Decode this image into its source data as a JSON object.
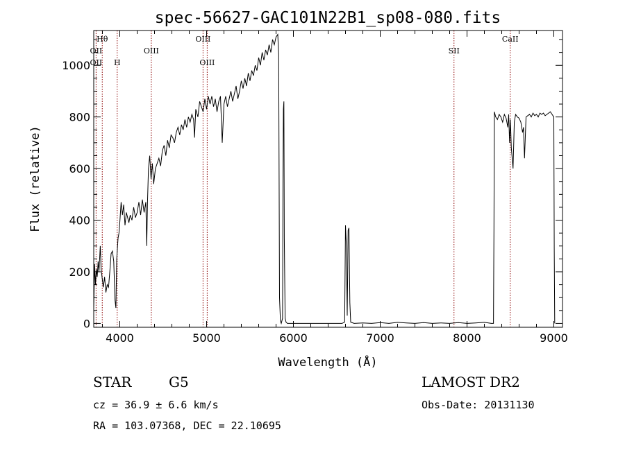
{
  "chart_data": {
    "type": "line",
    "title": "spec-56627-GAC101N22B1_sp08-080.fits",
    "xlabel": "Wavelength (Å)",
    "ylabel": "Flux (relative)",
    "xlim": [
      3700,
      9100
    ],
    "ylim": [
      -15,
      1135
    ],
    "x_ticks": [
      4000,
      5000,
      6000,
      7000,
      8000,
      9000
    ],
    "y_ticks": [
      0,
      200,
      400,
      600,
      800,
      1000
    ],
    "grid": false,
    "line_color": "#000000",
    "marker_color": "#8b0000",
    "spectrum": [
      [
        3700,
        60
      ],
      [
        3710,
        230
      ],
      [
        3720,
        150
      ],
      [
        3730,
        210
      ],
      [
        3740,
        180
      ],
      [
        3750,
        240
      ],
      [
        3760,
        200
      ],
      [
        3775,
        300
      ],
      [
        3785,
        210
      ],
      [
        3795,
        180
      ],
      [
        3810,
        140
      ],
      [
        3825,
        180
      ],
      [
        3840,
        120
      ],
      [
        3855,
        150
      ],
      [
        3870,
        140
      ],
      [
        3885,
        200
      ],
      [
        3900,
        270
      ],
      [
        3915,
        280
      ],
      [
        3930,
        240
      ],
      [
        3945,
        90
      ],
      [
        3955,
        60
      ],
      [
        3965,
        250
      ],
      [
        3980,
        330
      ],
      [
        3990,
        350
      ],
      [
        4000,
        390
      ],
      [
        4015,
        470
      ],
      [
        4030,
        420
      ],
      [
        4045,
        460
      ],
      [
        4060,
        380
      ],
      [
        4075,
        430
      ],
      [
        4090,
        410
      ],
      [
        4105,
        390
      ],
      [
        4120,
        420
      ],
      [
        4140,
        400
      ],
      [
        4160,
        450
      ],
      [
        4180,
        410
      ],
      [
        4200,
        430
      ],
      [
        4220,
        470
      ],
      [
        4240,
        420
      ],
      [
        4260,
        480
      ],
      [
        4280,
        430
      ],
      [
        4300,
        470
      ],
      [
        4310,
        300
      ],
      [
        4320,
        480
      ],
      [
        4330,
        600
      ],
      [
        4345,
        650
      ],
      [
        4360,
        560
      ],
      [
        4375,
        620
      ],
      [
        4390,
        540
      ],
      [
        4410,
        600
      ],
      [
        4430,
        620
      ],
      [
        4450,
        640
      ],
      [
        4470,
        610
      ],
      [
        4490,
        670
      ],
      [
        4510,
        690
      ],
      [
        4530,
        650
      ],
      [
        4550,
        710
      ],
      [
        4570,
        680
      ],
      [
        4590,
        730
      ],
      [
        4610,
        720
      ],
      [
        4630,
        700
      ],
      [
        4650,
        740
      ],
      [
        4670,
        760
      ],
      [
        4690,
        730
      ],
      [
        4710,
        770
      ],
      [
        4730,
        750
      ],
      [
        4750,
        790
      ],
      [
        4770,
        760
      ],
      [
        4790,
        800
      ],
      [
        4810,
        780
      ],
      [
        4830,
        810
      ],
      [
        4850,
        790
      ],
      [
        4861,
        720
      ],
      [
        4875,
        830
      ],
      [
        4900,
        800
      ],
      [
        4920,
        860
      ],
      [
        4940,
        840
      ],
      [
        4960,
        820
      ],
      [
        4980,
        870
      ],
      [
        5000,
        830
      ],
      [
        5020,
        880
      ],
      [
        5040,
        850
      ],
      [
        5060,
        880
      ],
      [
        5080,
        840
      ],
      [
        5100,
        870
      ],
      [
        5120,
        820
      ],
      [
        5140,
        860
      ],
      [
        5160,
        880
      ],
      [
        5180,
        700
      ],
      [
        5200,
        850
      ],
      [
        5220,
        880
      ],
      [
        5240,
        840
      ],
      [
        5260,
        870
      ],
      [
        5280,
        900
      ],
      [
        5300,
        860
      ],
      [
        5320,
        890
      ],
      [
        5340,
        920
      ],
      [
        5360,
        870
      ],
      [
        5380,
        900
      ],
      [
        5400,
        940
      ],
      [
        5420,
        910
      ],
      [
        5440,
        950
      ],
      [
        5460,
        920
      ],
      [
        5480,
        970
      ],
      [
        5500,
        940
      ],
      [
        5520,
        980
      ],
      [
        5540,
        960
      ],
      [
        5560,
        1000
      ],
      [
        5580,
        980
      ],
      [
        5600,
        1030
      ],
      [
        5620,
        1000
      ],
      [
        5640,
        1050
      ],
      [
        5660,
        1020
      ],
      [
        5680,
        1060
      ],
      [
        5700,
        1040
      ],
      [
        5720,
        1080
      ],
      [
        5740,
        1050
      ],
      [
        5760,
        1100
      ],
      [
        5780,
        1080
      ],
      [
        5800,
        1110
      ],
      [
        5820,
        1120
      ],
      [
        5830,
        1040
      ],
      [
        5840,
        100
      ],
      [
        5850,
        10
      ],
      [
        5860,
        0
      ],
      [
        5875,
        20
      ],
      [
        5880,
        540
      ],
      [
        5885,
        830
      ],
      [
        5890,
        860
      ],
      [
        5895,
        330
      ],
      [
        5905,
        20
      ],
      [
        5915,
        5
      ],
      [
        5930,
        0
      ],
      [
        6000,
        0
      ],
      [
        6100,
        0
      ],
      [
        6200,
        0
      ],
      [
        6300,
        0
      ],
      [
        6400,
        0
      ],
      [
        6500,
        0
      ],
      [
        6560,
        0
      ],
      [
        6590,
        5
      ],
      [
        6600,
        380
      ],
      [
        6610,
        300
      ],
      [
        6620,
        30
      ],
      [
        6630,
        360
      ],
      [
        6640,
        370
      ],
      [
        6650,
        80
      ],
      [
        6660,
        5
      ],
      [
        6700,
        0
      ],
      [
        6800,
        2
      ],
      [
        6900,
        0
      ],
      [
        7000,
        3
      ],
      [
        7100,
        0
      ],
      [
        7200,
        4
      ],
      [
        7300,
        2
      ],
      [
        7400,
        0
      ],
      [
        7500,
        3
      ],
      [
        7600,
        0
      ],
      [
        7700,
        2
      ],
      [
        7800,
        0
      ],
      [
        7900,
        3
      ],
      [
        8000,
        0
      ],
      [
        8100,
        2
      ],
      [
        8200,
        4
      ],
      [
        8280,
        0
      ],
      [
        8305,
        0
      ],
      [
        8310,
        370
      ],
      [
        8315,
        820
      ],
      [
        8330,
        800
      ],
      [
        8350,
        790
      ],
      [
        8370,
        810
      ],
      [
        8390,
        800
      ],
      [
        8410,
        780
      ],
      [
        8430,
        810
      ],
      [
        8450,
        795
      ],
      [
        8470,
        760
      ],
      [
        8480,
        810
      ],
      [
        8490,
        700
      ],
      [
        8500,
        790
      ],
      [
        8510,
        680
      ],
      [
        8530,
        600
      ],
      [
        8545,
        780
      ],
      [
        8560,
        810
      ],
      [
        8580,
        800
      ],
      [
        8600,
        795
      ],
      [
        8620,
        780
      ],
      [
        8640,
        740
      ],
      [
        8650,
        760
      ],
      [
        8662,
        640
      ],
      [
        8680,
        800
      ],
      [
        8700,
        805
      ],
      [
        8720,
        810
      ],
      [
        8740,
        800
      ],
      [
        8760,
        815
      ],
      [
        8780,
        805
      ],
      [
        8800,
        810
      ],
      [
        8820,
        800
      ],
      [
        8840,
        815
      ],
      [
        8860,
        810
      ],
      [
        8880,
        815
      ],
      [
        8900,
        805
      ],
      [
        8920,
        810
      ],
      [
        8940,
        815
      ],
      [
        8960,
        820
      ],
      [
        8980,
        810
      ],
      [
        9000,
        800
      ],
      [
        9005,
        290
      ],
      [
        9010,
        0
      ]
    ],
    "lines": [
      {
        "label": "Hθ",
        "x": 3798,
        "row": 0
      },
      {
        "label": "OII",
        "x": 3727,
        "row": 1
      },
      {
        "label": "OII",
        "x": 3727,
        "row": 2
      },
      {
        "label": "H",
        "x": 3970,
        "row": 2
      },
      {
        "label": "OIII",
        "x": 4363,
        "row": 1
      },
      {
        "label": "OIII",
        "x": 4959,
        "row": 0
      },
      {
        "label": "OIII",
        "x": 5007,
        "row": 2
      },
      {
        "label": "SII",
        "x": 7850,
        "row": 1
      },
      {
        "label": "CaII",
        "x": 8498,
        "row": 0
      }
    ]
  },
  "info": {
    "object_class": "STAR",
    "subclass": "G5",
    "survey": "LAMOST DR2",
    "cz": "cz = 36.9 ± 6.6 km/s",
    "obs_date": "Obs-Date: 20131130",
    "coords": "RA = 103.07368, DEC =  22.10695"
  }
}
